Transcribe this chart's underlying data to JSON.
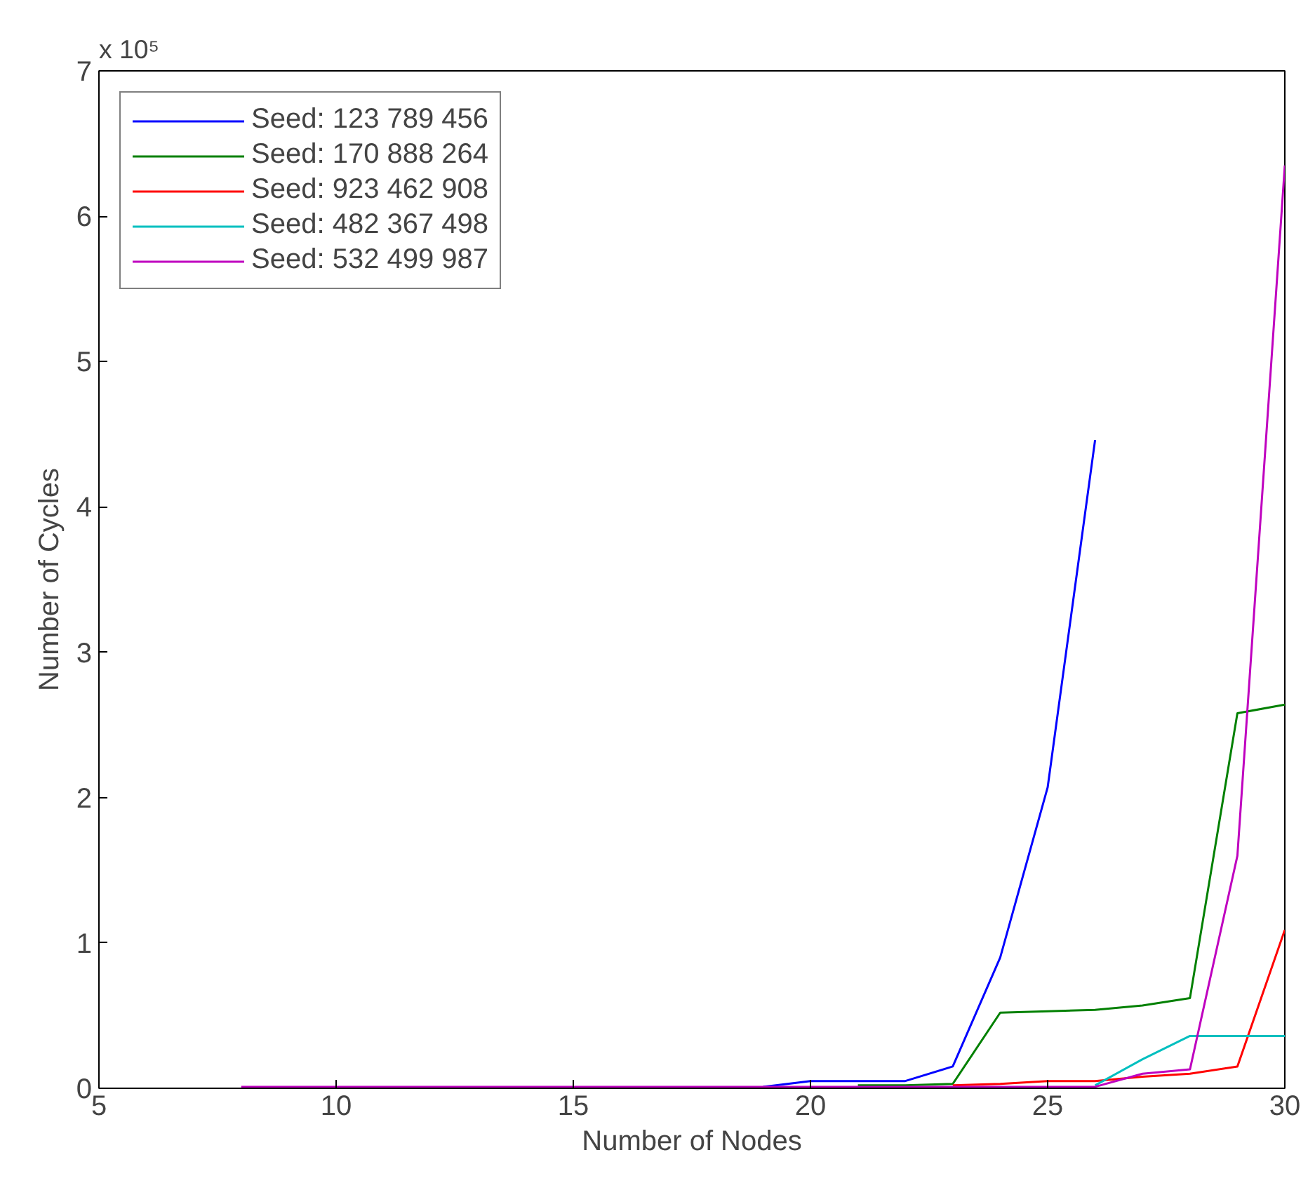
{
  "chart_data": {
    "type": "line",
    "xlabel": "Number of Nodes",
    "ylabel": "Number of Cycles",
    "annotations": [
      "x 10⁵"
    ],
    "x": [
      8,
      9,
      10,
      11,
      12,
      13,
      14,
      15,
      16,
      17,
      18,
      19,
      20,
      21,
      22,
      23,
      24,
      25,
      26,
      27,
      28,
      29,
      30
    ],
    "xlim": [
      5,
      30
    ],
    "xticks": [
      5,
      10,
      15,
      20,
      25,
      30
    ],
    "ylim": [
      0,
      7
    ],
    "yticks": [
      0,
      1,
      2,
      3,
      4,
      5,
      6,
      7
    ],
    "grid": false,
    "legend": "top left",
    "line_style": "solid",
    "marker": "none",
    "series": [
      {
        "name": "Seed: 123 789 456",
        "color": "#0000ff",
        "x": [
          19,
          20,
          21,
          22,
          23,
          24,
          25,
          26
        ],
        "values": [
          0.01,
          0.05,
          0.05,
          0.05,
          0.15,
          0.9,
          2.07,
          4.46
        ]
      },
      {
        "name": "Seed: 170 888 264",
        "color": "#008000",
        "values": [
          null,
          null,
          null,
          null,
          null,
          null,
          null,
          null,
          null,
          null,
          null,
          null,
          null,
          0.02,
          0.02,
          0.03,
          0.52,
          0.53,
          0.54,
          0.57,
          0.62,
          2.58,
          2.64
        ]
      },
      {
        "name": "Seed: 923 462 908",
        "color": "#ff0000",
        "values": [
          null,
          null,
          null,
          null,
          null,
          null,
          null,
          null,
          null,
          null,
          null,
          null,
          null,
          null,
          null,
          0.02,
          0.03,
          0.05,
          0.05,
          0.08,
          0.1,
          0.15,
          1.09
        ]
      },
      {
        "name": "Seed: 482 367 498",
        "color": "#00bfbf",
        "values": [
          null,
          null,
          null,
          null,
          null,
          null,
          null,
          null,
          null,
          null,
          null,
          null,
          null,
          null,
          null,
          null,
          null,
          null,
          0.02,
          0.2,
          0.36,
          0.36,
          0.36
        ]
      },
      {
        "name": "Seed: 532 499 987",
        "color": "#bf00bf",
        "values": [
          0.01,
          0.01,
          0.01,
          0.01,
          0.01,
          0.01,
          0.01,
          0.01,
          0.01,
          0.01,
          0.01,
          0.01,
          0.01,
          0.01,
          0.01,
          0.01,
          0.01,
          0.01,
          0.01,
          0.1,
          0.13,
          1.6,
          6.35
        ]
      }
    ]
  }
}
